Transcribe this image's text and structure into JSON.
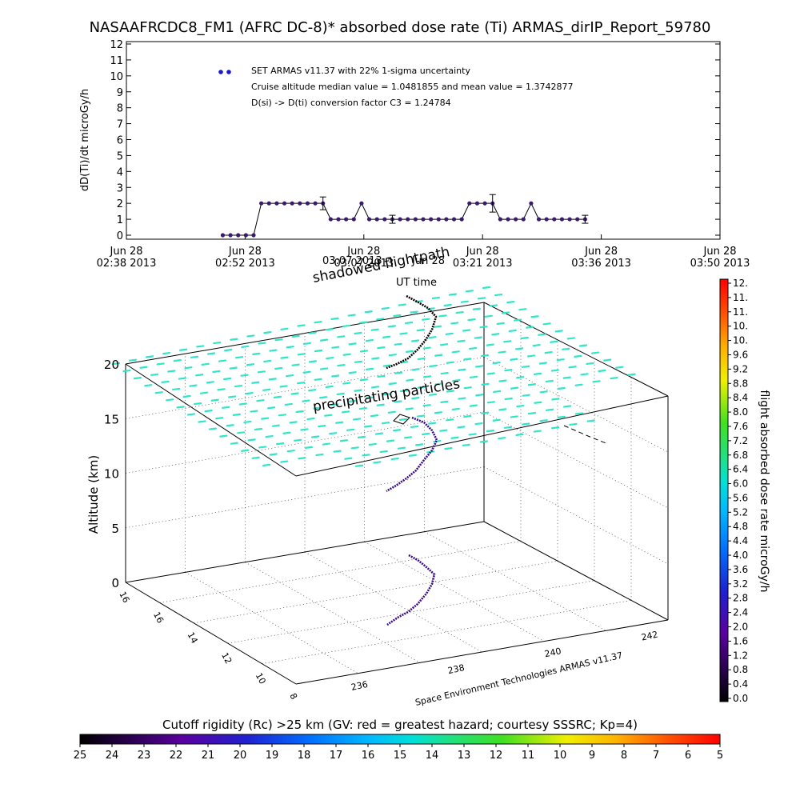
{
  "figure": {
    "title": "NASAAFRCDC8_FM1 (AFRC DC-8)* absorbed dose rate (Ti) ARMAS_dirIP_Report_59780",
    "colors": {
      "series": "#1a1acc",
      "series_dot": "#3a1a6a",
      "particles": "#2ee6c8",
      "trajectory_high": "#000000",
      "trajectory_mid": "#3a0a8a"
    }
  },
  "chart_data": [
    {
      "type": "line",
      "ylabel": "dD(Ti)/dt microGy/h",
      "ylim": [
        0,
        12
      ],
      "y_ticks": [
        "0",
        "1",
        "2",
        "3",
        "4",
        "5",
        "6",
        "7",
        "8",
        "9",
        "10",
        "11",
        "12"
      ],
      "xlim_min": [
        158,
        312
      ],
      "x_tick_labels": [
        {
          "day": "Jun 28",
          "time": "02:38 2013"
        },
        {
          "day": "Jun 28",
          "time": "02:52 2013"
        },
        {
          "day": "Jun 28",
          "time": "03:07 2013"
        },
        {
          "day": "Jun 28",
          "time": "03:21 2013"
        },
        {
          "day": "Jun 28",
          "time": "03:36 2013"
        },
        {
          "day": "Jun 28",
          "time": "03:50 2013"
        }
      ],
      "legend": {
        "marker_color": "#1a1acc",
        "lines": [
          "SET ARMAS v11.37 with 22% 1-sigma uncertainty",
          "Cruise altitude median value = 1.0481855 and mean value = 1.3742877",
          "D(si) -> D(ti) conversion factor C3 = 1.24784"
        ]
      },
      "series": [
        {
          "x": [
            183,
            185,
            187,
            189,
            191,
            193,
            195,
            197,
            199,
            201,
            203,
            205,
            207,
            209,
            211,
            213,
            215,
            217,
            219,
            221,
            223,
            225,
            227,
            229,
            231,
            233,
            235,
            237,
            239,
            241,
            243,
            245,
            247,
            249,
            251,
            253,
            255,
            257,
            259,
            261,
            263,
            265,
            267,
            269,
            271,
            273,
            275,
            277
          ],
          "y": [
            0,
            0,
            0,
            0,
            0,
            2,
            2,
            2,
            2,
            2,
            2,
            2,
            2,
            2,
            1,
            1,
            1,
            1,
            2,
            1,
            1,
            1,
            1,
            1,
            1,
            1,
            1,
            1,
            1,
            1,
            1,
            1,
            2,
            2,
            2,
            2,
            1,
            1,
            1,
            1,
            2,
            1,
            1,
            1,
            1,
            1,
            1,
            1
          ]
        }
      ],
      "error_bars": [
        {
          "x": 209,
          "lo": 1.6,
          "hi": 2.4
        },
        {
          "x": 227,
          "lo": 0.75,
          "hi": 1.25
        },
        {
          "x": 253,
          "lo": 1.45,
          "hi": 2.55
        },
        {
          "x": 277,
          "lo": 0.75,
          "hi": 1.25
        }
      ]
    },
    {
      "type": "scatter",
      "ylabel": "Altitude (km)",
      "z_ticks": [
        "0",
        "5",
        "10",
        "15",
        "20"
      ],
      "zlim": [
        0,
        20
      ],
      "latitude_ticks": [
        "16",
        "16",
        "14",
        "12",
        "10",
        "8"
      ],
      "longitude_ticks": [
        "236",
        "238",
        "240",
        "242"
      ],
      "labels": {
        "shadow": "shadowed flightpath",
        "ut": "UT time",
        "particles": "precipitating particles",
        "credit": "Space Environment Technologies ARMAS v11.37"
      },
      "overlay_date": "03:07 2013",
      "overlay_month": "Jun 28"
    }
  ],
  "colorbar_dose": {
    "label": "flight absorbed dose rate microGy/h",
    "ticks": [
      "12.",
      "11.",
      "11.",
      "10.",
      "10.",
      "9.6",
      "9.2",
      "8.8",
      "8.4",
      "8.0",
      "7.6",
      "7.2",
      "6.8",
      "6.4",
      "6.0",
      "5.6",
      "5.2",
      "4.8",
      "4.4",
      "4.0",
      "3.6",
      "3.2",
      "2.8",
      "2.4",
      "2.0",
      "1.6",
      "1.2",
      "0.8",
      "0.4",
      "0.0"
    ]
  },
  "colorbar_rigidity": {
    "label": "Cutoff rigidity (Rc) >25 km (GV: red = greatest hazard; courtesy SSSRC; Kp=4)",
    "ticks": [
      "25",
      "24",
      "23",
      "22",
      "21",
      "20",
      "19",
      "18",
      "17",
      "16",
      "15",
      "14",
      "13",
      "12",
      "11",
      "10",
      "9",
      "8",
      "7",
      "6",
      "5"
    ]
  }
}
